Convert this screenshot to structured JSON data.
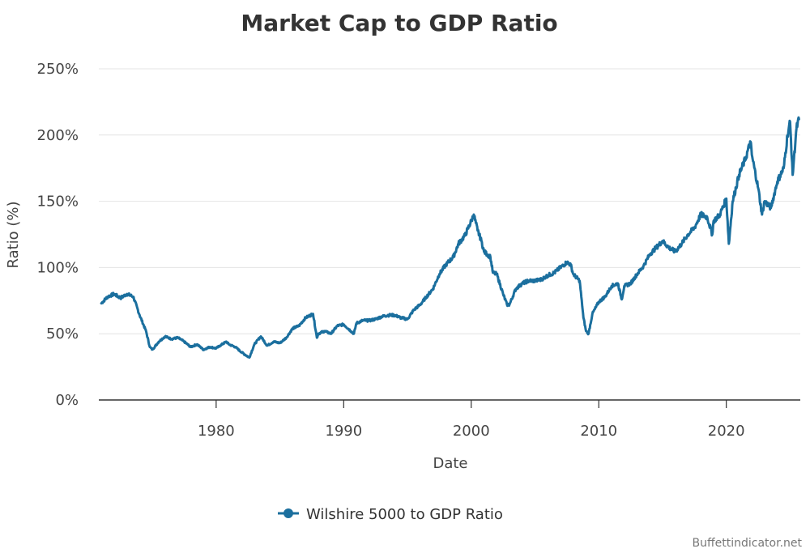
{
  "chart_data": {
    "type": "line",
    "title": "Market Cap to GDP Ratio",
    "xlabel": "Date",
    "ylabel": "Ratio (%)",
    "xlim": [
      1970.8,
      2025.8
    ],
    "ylim": [
      0,
      250
    ],
    "x_ticks": [
      1980,
      1990,
      2000,
      2010,
      2020
    ],
    "x_tick_labels": [
      "1980",
      "1990",
      "2000",
      "2010",
      "2020"
    ],
    "y_ticks": [
      0,
      50,
      100,
      150,
      200,
      250
    ],
    "y_tick_labels": [
      "0%",
      "50%",
      "100%",
      "150%",
      "200%",
      "250%"
    ],
    "grid": true,
    "legend_position": "bottom-center",
    "series": [
      {
        "name": "Wilshire 5000 to GDP Ratio",
        "color": "#1b6f9e",
        "x": [
          1971.0,
          1971.5,
          1972.0,
          1972.5,
          1973.0,
          1973.5,
          1974.0,
          1974.5,
          1974.8,
          1975.0,
          1975.5,
          1976.0,
          1976.5,
          1977.0,
          1977.5,
          1978.0,
          1978.5,
          1979.0,
          1979.5,
          1980.0,
          1980.3,
          1980.8,
          1981.0,
          1981.5,
          1982.0,
          1982.6,
          1983.0,
          1983.5,
          1984.0,
          1984.5,
          1985.0,
          1985.5,
          1986.0,
          1986.5,
          1987.0,
          1987.6,
          1987.9,
          1988.0,
          1988.5,
          1989.0,
          1989.5,
          1990.0,
          1990.8,
          1991.0,
          1991.5,
          1992.0,
          1992.5,
          1993.0,
          1993.5,
          1994.0,
          1994.5,
          1995.0,
          1995.5,
          1996.0,
          1996.5,
          1997.0,
          1997.5,
          1998.0,
          1998.6,
          1999.0,
          1999.5,
          2000.0,
          2000.2,
          2000.5,
          2000.8,
          2001.0,
          2001.5,
          2001.7,
          2002.0,
          2002.5,
          2002.8,
          2003.0,
          2003.5,
          2004.0,
          2004.5,
          2005.0,
          2005.5,
          2006.0,
          2006.5,
          2007.0,
          2007.5,
          2007.8,
          2008.0,
          2008.5,
          2008.8,
          2009.0,
          2009.2,
          2009.5,
          2010.0,
          2010.5,
          2011.0,
          2011.5,
          2011.8,
          2012.0,
          2012.5,
          2013.0,
          2013.5,
          2014.0,
          2014.5,
          2015.0,
          2015.5,
          2016.0,
          2016.5,
          2017.0,
          2017.5,
          2018.0,
          2018.5,
          2018.9,
          2019.0,
          2019.5,
          2020.0,
          2020.2,
          2020.5,
          2021.0,
          2021.5,
          2021.9,
          2022.0,
          2022.5,
          2022.8,
          2023.0,
          2023.5,
          2024.0,
          2024.5,
          2024.8,
          2025.0,
          2025.2,
          2025.5,
          2025.7
        ],
        "values": [
          73,
          78,
          80,
          77,
          80,
          78,
          64,
          52,
          40,
          38,
          44,
          48,
          46,
          47,
          44,
          40,
          42,
          38,
          40,
          39,
          41,
          44,
          42,
          40,
          36,
          32,
          42,
          48,
          41,
          44,
          43,
          47,
          54,
          56,
          62,
          65,
          47,
          50,
          52,
          50,
          56,
          57,
          50,
          58,
          60,
          60,
          61,
          63,
          64,
          64,
          62,
          61,
          68,
          72,
          78,
          84,
          95,
          102,
          108,
          118,
          124,
          135,
          140,
          128,
          120,
          112,
          108,
          96,
          95,
          80,
          72,
          72,
          84,
          88,
          90,
          90,
          91,
          94,
          96,
          100,
          104,
          102,
          95,
          90,
          62,
          52,
          50,
          65,
          74,
          78,
          86,
          88,
          76,
          86,
          88,
          95,
          101,
          110,
          115,
          120,
          115,
          112,
          118,
          125,
          130,
          140,
          138,
          125,
          135,
          140,
          152,
          118,
          150,
          170,
          182,
          195,
          185,
          160,
          140,
          150,
          145,
          165,
          175,
          200,
          210,
          170,
          205,
          212
        ]
      }
    ],
    "legend": [
      "Wilshire 5000 to GDP Ratio"
    ],
    "credit": "Buffettindicator.net"
  }
}
